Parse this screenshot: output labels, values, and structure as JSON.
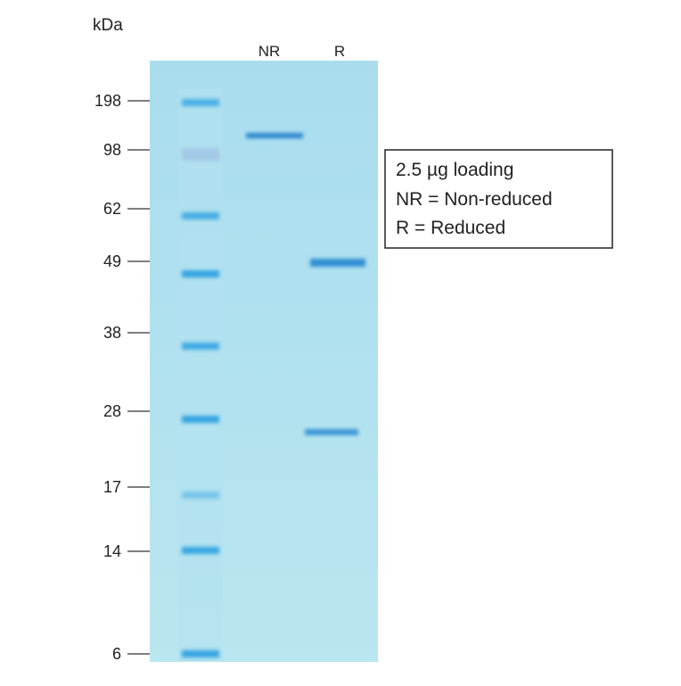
{
  "figure": {
    "unit_label": "kDa",
    "lanes": [
      "NR",
      "R"
    ],
    "markers": [
      "198",
      "98",
      "62",
      "49",
      "38",
      "28",
      "17",
      "14",
      "6"
    ],
    "legend": [
      "2.5 µg loading",
      "NR = Non-reduced",
      "R = Reduced"
    ]
  }
}
